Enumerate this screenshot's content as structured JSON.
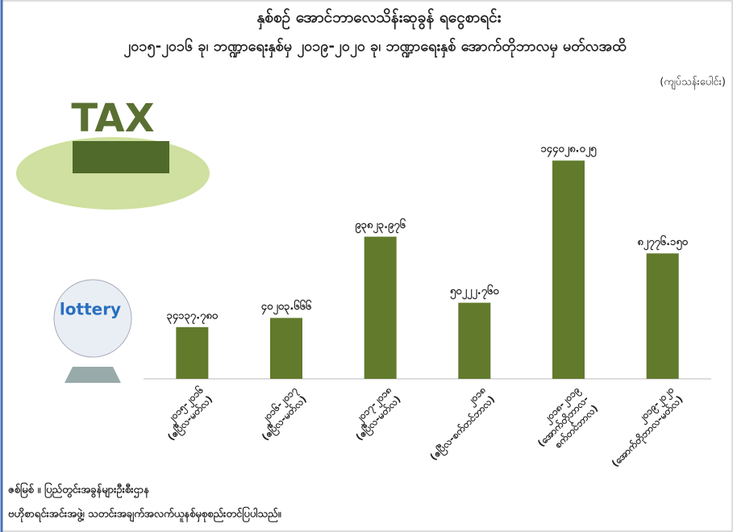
{
  "chart_data": {
    "type": "bar",
    "title": "နှစ်စဉ် အောင်ဘာလေသိန်းဆုခွန် ရငွေစာရင်း",
    "subtitle": "၂၀၁၅-၂၀၁၆ ခု၊ ဘဏ္ဍာရေးနှစ်မှ ၂၀၁၉-၂၀၂၀ ခု၊ ဘဏ္ဍာရေးနှစ် အောက်တိုဘာလမှ မတ်လအထိ",
    "unit_label": "(ကျပ်သန်းပေါင်း)",
    "categories": [
      [
        "၂၀၁၅-၂၀၁၆",
        "(ဧပြီလ-မတ်လ)"
      ],
      [
        "၂၀၁၆-၂၀၁၇",
        "(ဧပြီလ-မတ်လ)"
      ],
      [
        "၂၀၁၇-၂၀၁၈",
        "(ဧပြီလ-မတ်လ)"
      ],
      [
        "၂၀၁၈",
        "(ဧပြီလ-စက်တင်ဘာလ)"
      ],
      [
        "၂၀၁၈-၂၀၁၉",
        "(အောက်တိုဘာလ-",
        "စက်တင်ဘာလ)"
      ],
      [
        "၂၀၁၉-၂၀၂၀",
        "(အောက်တိုဘာလ-မတ်လ)"
      ]
    ],
    "values": [
      34137.78,
      40203.666,
      93823.976,
      50222.76,
      144028.025,
      82776.15
    ],
    "value_labels": [
      "၃၄၁၃၇.၇၈၀",
      "၄၀၂၀၃.၆၆၆",
      "၉၃၈၂၃.၉၇၆",
      "၅၀၂၂၂.၇၆၀",
      "၁၄၄၀၂၈.၀၂၅",
      "၈၂၇၇၆.၁၅၀"
    ],
    "color": "#617a2c",
    "ylim": [
      0,
      150000
    ],
    "source": [
      "ဇစ်မြစ် ။ ပြည်တွင်းအခွန်များဦးစီးဌာန",
      "ဗဟိုစာရင်းအင်းအဖွဲ့၊ သတင်းအချက်အလက်ယူနစ်မှစုစည်းတင်ပြပါသည်။"
    ],
    "illustrations": {
      "tax": "TAX",
      "lottery": "lottery"
    }
  }
}
